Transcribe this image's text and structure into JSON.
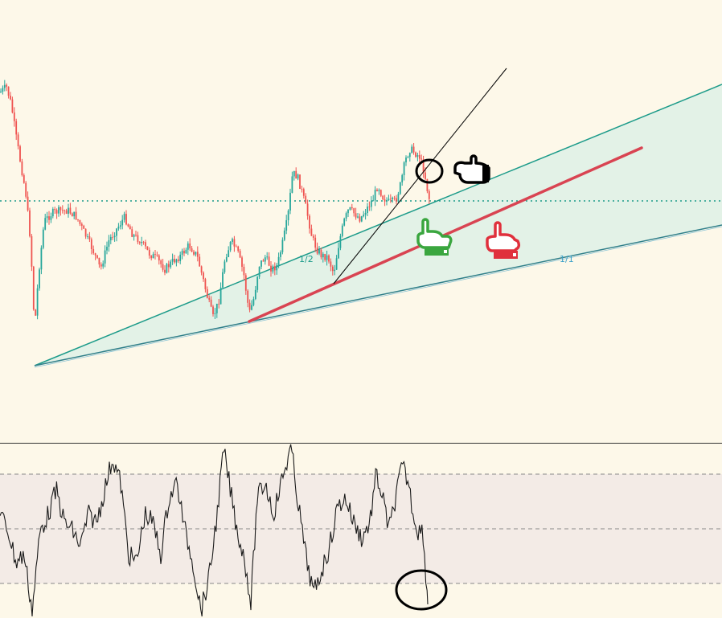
{
  "chart_data": [
    {
      "type": "candlestick",
      "panel": "price",
      "title": "",
      "fan_labels": [
        "1/2",
        "1/1"
      ],
      "colors": {
        "background": "#fdf8e9",
        "up_candle": "#26a69a",
        "down_candle": "#ef5350",
        "fan_line": "#1c9b8a",
        "fan_fill": "#e3f2e7",
        "fan_bottom_line": "#2f7f8a",
        "red_trend": "#d94452",
        "dotted_level": "#1c9b8a",
        "black_line": "#000000",
        "label_teal": "#1c9b8a",
        "label_blue": "#3aa0c8"
      },
      "annotations": [
        {
          "icon": "pointing-hand-right-icon",
          "color": "#000000"
        },
        {
          "icon": "pointing-hand-down-icon",
          "color": "#3aa63f"
        },
        {
          "icon": "pointing-hand-down-icon",
          "color": "#e0303c"
        },
        {
          "icon": "circle-marker-icon",
          "color": "#000000"
        }
      ]
    },
    {
      "type": "line",
      "panel": "oscillator",
      "title": "",
      "bands": [
        "upper",
        "middle",
        "lower"
      ],
      "colors": {
        "background": "#f3ebe6",
        "line": "#1a1a1a",
        "band_line": "#888888",
        "circle": "#000000"
      }
    }
  ]
}
